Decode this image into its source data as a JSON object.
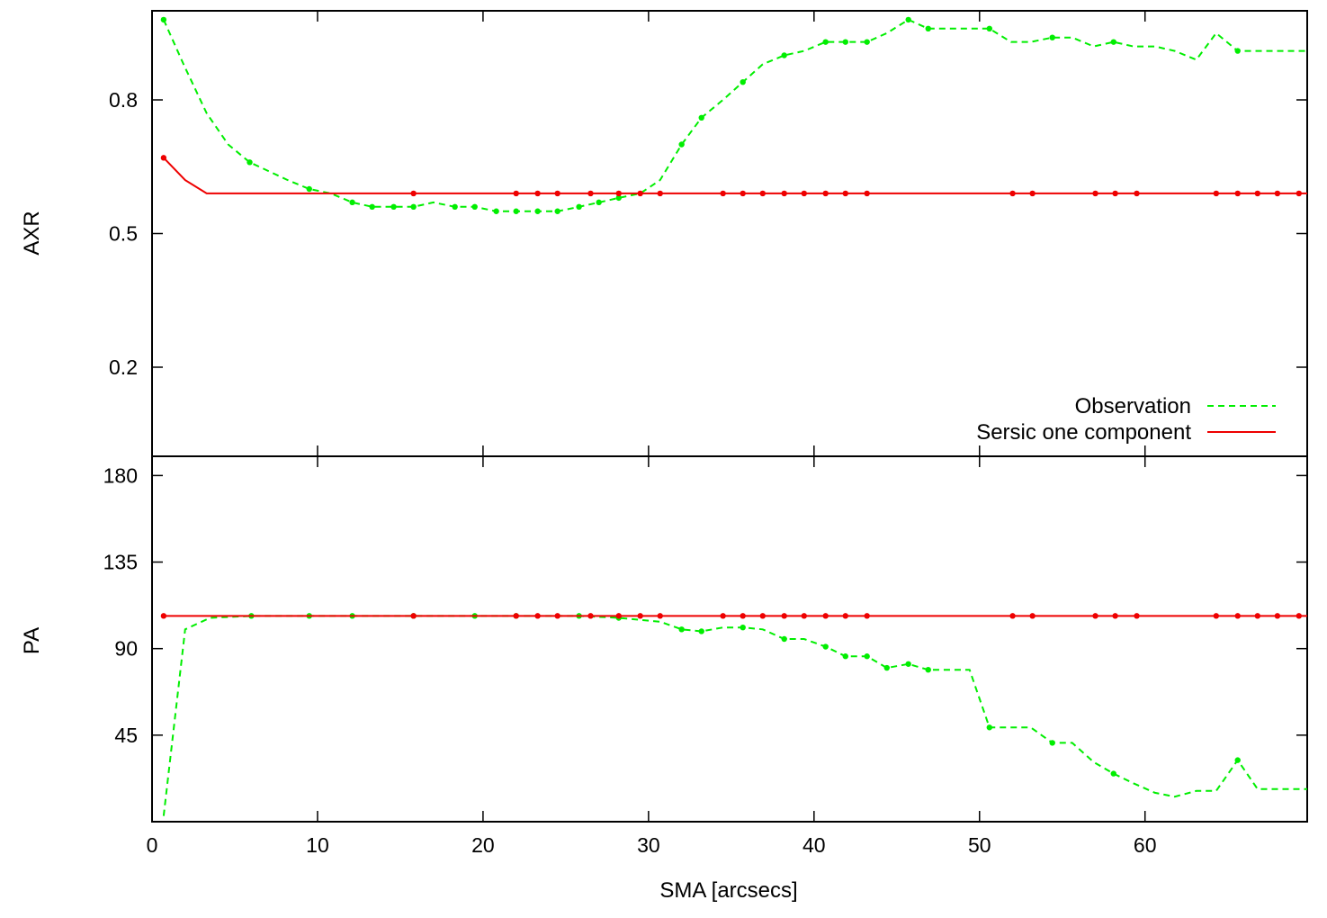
{
  "colors": {
    "observation": "#00ee00",
    "sersic": "#ee0000",
    "axes": "#000000",
    "background": "#ffffff"
  },
  "labels": {
    "top_ylabel": "AXR",
    "bottom_ylabel": "PA",
    "xlabel": "SMA [arcsecs]"
  },
  "legend": {
    "position": "bottom-right of top panel",
    "observation": "Observation",
    "sersic": "Sersic one component"
  },
  "chart_data": [
    {
      "type": "line",
      "panel": "top",
      "ylabel": "AXR",
      "xlim": [
        0,
        69.8
      ],
      "ylim": [
        0,
        1.0
      ],
      "yticks": [
        "0.2",
        "0.5",
        "0.8"
      ],
      "ytick_values": [
        0.2,
        0.5,
        0.8
      ],
      "grid": false,
      "series": [
        {
          "name": "Observation",
          "style": "dashed",
          "color_key": "observation",
          "x": [
            0.7,
            1.9,
            3.3,
            4.6,
            5.9,
            8.2,
            9.5,
            10.8,
            12.1,
            13.3,
            14.6,
            15.8,
            17.0,
            18.3,
            19.5,
            20.8,
            22.0,
            23.3,
            24.5,
            25.8,
            27.0,
            28.2,
            29.5,
            30.7,
            32.0,
            33.2,
            34.5,
            35.7,
            36.9,
            38.2,
            39.4,
            40.7,
            41.9,
            43.2,
            44.4,
            45.7,
            46.9,
            48.1,
            49.4,
            50.6,
            51.9,
            53.1,
            54.4,
            55.6,
            56.9,
            58.1,
            59.3,
            60.6,
            61.8,
            63.1,
            64.3,
            65.6,
            66.8,
            68.0,
            69.8
          ],
          "y": [
            0.98,
            0.88,
            0.77,
            0.7,
            0.66,
            0.62,
            0.6,
            0.59,
            0.57,
            0.56,
            0.56,
            0.56,
            0.57,
            0.56,
            0.56,
            0.55,
            0.55,
            0.55,
            0.55,
            0.56,
            0.57,
            0.58,
            0.59,
            0.62,
            0.7,
            0.76,
            0.8,
            0.84,
            0.88,
            0.9,
            0.91,
            0.93,
            0.93,
            0.93,
            0.95,
            0.98,
            0.96,
            0.96,
            0.96,
            0.96,
            0.93,
            0.93,
            0.94,
            0.94,
            0.92,
            0.93,
            0.92,
            0.92,
            0.91,
            0.89,
            0.95,
            0.91,
            0.91,
            0.91,
            0.91
          ],
          "markers_at": [
            0.7,
            5.9,
            9.5,
            12.1,
            13.3,
            14.6,
            15.8,
            18.3,
            19.5,
            20.8,
            22.0,
            23.3,
            24.5,
            25.8,
            27.0,
            28.2,
            32.0,
            33.2,
            35.7,
            38.2,
            40.7,
            41.9,
            43.2,
            45.7,
            46.9,
            50.6,
            54.4,
            58.1,
            65.6
          ]
        },
        {
          "name": "Sersic one component",
          "style": "solid",
          "color_key": "sersic",
          "x": [
            0.7,
            2.0,
            3.3,
            7.0,
            69.8
          ],
          "y": [
            0.67,
            0.62,
            0.59,
            0.59,
            0.59
          ],
          "markers_at": [
            0.7,
            15.8,
            22.0,
            23.3,
            24.5,
            26.5,
            28.2,
            29.5,
            30.7,
            34.5,
            35.7,
            36.9,
            38.2,
            39.4,
            40.7,
            41.9,
            43.2,
            52.0,
            53.2,
            57.0,
            58.2,
            59.5,
            64.3,
            65.6,
            66.8,
            68.0,
            69.3
          ]
        }
      ]
    },
    {
      "type": "line",
      "panel": "bottom",
      "ylabel": "PA",
      "xlabel": "SMA [arcsecs]",
      "xlim": [
        0,
        69.8
      ],
      "ylim": [
        0,
        190
      ],
      "xticks": [
        "0",
        "10",
        "20",
        "30",
        "40",
        "50",
        "60"
      ],
      "xtick_values": [
        0,
        10,
        20,
        30,
        40,
        50,
        60
      ],
      "yticks": [
        "45",
        "90",
        "135",
        "180"
      ],
      "ytick_values": [
        45,
        90,
        135,
        180
      ],
      "grid": false,
      "series": [
        {
          "name": "Observation",
          "style": "dashed",
          "color_key": "observation",
          "x": [
            0.7,
            2.0,
            3.5,
            6.0,
            9.5,
            12.1,
            15.8,
            19.5,
            22.0,
            25.8,
            28.2,
            30.7,
            32.0,
            33.2,
            34.5,
            35.7,
            36.9,
            38.2,
            39.4,
            40.7,
            41.9,
            43.2,
            44.4,
            45.7,
            46.9,
            48.1,
            49.4,
            50.6,
            51.9,
            53.1,
            54.4,
            55.6,
            56.9,
            58.1,
            59.3,
            60.6,
            61.8,
            63.1,
            64.3,
            65.6,
            66.8,
            68.0,
            69.8
          ],
          "y": [
            3,
            100,
            106,
            107,
            107,
            107,
            107,
            107,
            107,
            107,
            106,
            104,
            100,
            99,
            101,
            101,
            100,
            95,
            95,
            91,
            86,
            86,
            80,
            82,
            79,
            79,
            79,
            49,
            49,
            49,
            41,
            41,
            31,
            25,
            20,
            15,
            13,
            16,
            16,
            32,
            17,
            17,
            17
          ],
          "markers_at": [
            6.0,
            9.5,
            12.1,
            15.8,
            19.5,
            22.0,
            25.8,
            28.2,
            32.0,
            33.2,
            35.7,
            38.2,
            40.7,
            41.9,
            43.2,
            44.4,
            45.7,
            46.9,
            50.6,
            54.4,
            58.1,
            65.6
          ]
        },
        {
          "name": "Sersic one component",
          "style": "solid",
          "color_key": "sersic",
          "x": [
            0.7,
            69.8
          ],
          "y": [
            107,
            107
          ],
          "markers_at": [
            0.7,
            15.8,
            22.0,
            23.3,
            24.5,
            26.5,
            28.2,
            29.5,
            30.7,
            34.5,
            35.7,
            36.9,
            38.2,
            39.4,
            40.7,
            41.9,
            43.2,
            52.0,
            53.2,
            57.0,
            58.2,
            59.5,
            64.3,
            65.6,
            66.8,
            68.0,
            69.3
          ]
        }
      ]
    }
  ]
}
